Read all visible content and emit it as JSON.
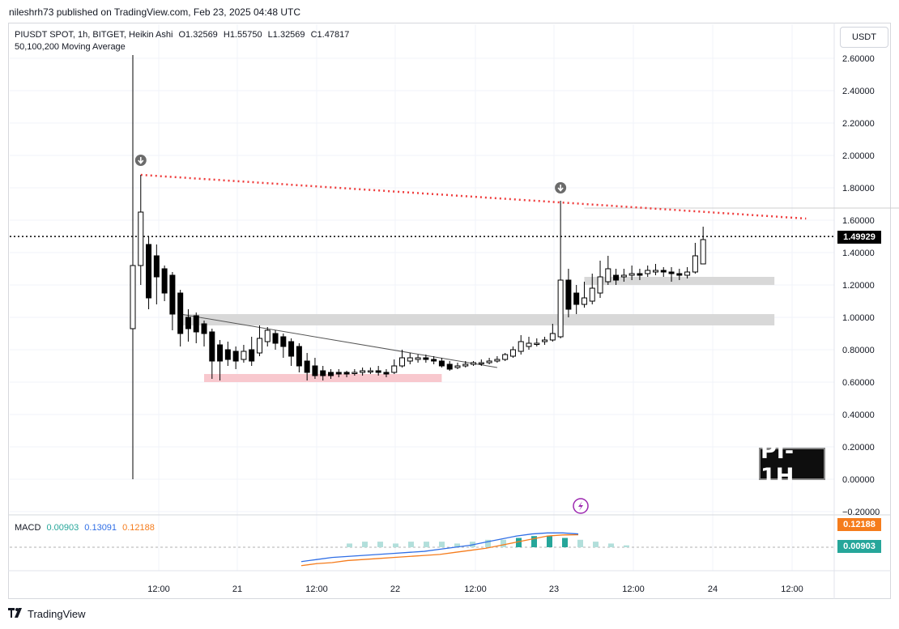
{
  "header": {
    "published": "nileshrh73 published on TradingView.com, Feb 23, 2025 04:48 UTC"
  },
  "legend": {
    "symbol": "PIUSDT SPOT, 1h, BITGET, Heikin Ashi",
    "open": "O1.32569",
    "high": "H1.55750",
    "low": "L1.32569",
    "close": "C1.47817",
    "ma": "50,100,200 Moving Average"
  },
  "currency_button": "USDT",
  "badge": "PI-1H",
  "macd_legend": {
    "label": "MACD",
    "hist": "0.00903",
    "macd": "0.13091",
    "signal": "0.12188"
  },
  "tags": {
    "last_price": "1.49929",
    "signal": "0.12188",
    "hist": "0.00903"
  },
  "footer": {
    "brand": "TradingView"
  },
  "colors": {
    "bull": "#ffffff",
    "bear": "#000000",
    "resistance": "#ef3b3b",
    "support_zone": "#d8d8d8",
    "demand_zone": "#f8c8ce",
    "macd_line": "#2f6ee6",
    "signal_line": "#f57c1c",
    "hist_up": "#26a69a",
    "hist_fade": "#b2dfdb",
    "alert": "#9c27b0"
  },
  "chart_data": {
    "type": "candlestick",
    "y_ticks": [
      "2.60000",
      "2.40000",
      "2.20000",
      "2.00000",
      "1.80000",
      "1.60000",
      "1.40000",
      "1.20000",
      "1.00000",
      "0.80000",
      "0.60000",
      "0.40000",
      "0.20000",
      "0.00000",
      "−0.20000"
    ],
    "x_ticks": [
      "12:00",
      "21",
      "12:00",
      "22",
      "12:00",
      "23",
      "12:00",
      "24",
      "12:00"
    ],
    "ylim": [
      -0.2,
      2.6
    ],
    "candles": [
      {
        "o": 0.93,
        "c": 1.32,
        "h": 2.62,
        "l": 0.0
      },
      {
        "o": 1.32,
        "c": 1.65,
        "h": 1.88,
        "l": 1.2
      },
      {
        "o": 1.45,
        "c": 1.12,
        "h": 1.5,
        "l": 1.05
      },
      {
        "o": 1.38,
        "c": 1.25,
        "h": 1.45,
        "l": 1.08
      },
      {
        "o": 1.3,
        "c": 1.15,
        "h": 1.32,
        "l": 1.1
      },
      {
        "o": 1.26,
        "c": 1.02,
        "h": 1.28,
        "l": 0.92
      },
      {
        "o": 1.15,
        "c": 0.9,
        "h": 1.17,
        "l": 0.82
      },
      {
        "o": 1.0,
        "c": 0.93,
        "h": 1.05,
        "l": 0.85
      },
      {
        "o": 1.01,
        "c": 0.91,
        "h": 1.03,
        "l": 0.84
      },
      {
        "o": 0.96,
        "c": 0.9,
        "h": 0.98,
        "l": 0.82
      },
      {
        "o": 0.91,
        "c": 0.73,
        "h": 0.93,
        "l": 0.62
      },
      {
        "o": 0.83,
        "c": 0.73,
        "h": 0.86,
        "l": 0.61
      },
      {
        "o": 0.8,
        "c": 0.74,
        "h": 0.85,
        "l": 0.7
      },
      {
        "o": 0.79,
        "c": 0.73,
        "h": 0.82,
        "l": 0.68
      },
      {
        "o": 0.74,
        "c": 0.79,
        "h": 0.83,
        "l": 0.72
      },
      {
        "o": 0.8,
        "c": 0.73,
        "h": 0.88,
        "l": 0.7
      },
      {
        "o": 0.78,
        "c": 0.87,
        "h": 0.95,
        "l": 0.76
      },
      {
        "o": 0.85,
        "c": 0.92,
        "h": 0.94,
        "l": 0.82
      },
      {
        "o": 0.9,
        "c": 0.84,
        "h": 0.92,
        "l": 0.8
      },
      {
        "o": 0.88,
        "c": 0.82,
        "h": 0.9,
        "l": 0.75
      },
      {
        "o": 0.85,
        "c": 0.76,
        "h": 0.87,
        "l": 0.7
      },
      {
        "o": 0.82,
        "c": 0.7,
        "h": 0.84,
        "l": 0.66
      },
      {
        "o": 0.73,
        "c": 0.66,
        "h": 0.78,
        "l": 0.61
      },
      {
        "o": 0.7,
        "c": 0.64,
        "h": 0.75,
        "l": 0.62
      },
      {
        "o": 0.67,
        "c": 0.64,
        "h": 0.7,
        "l": 0.61
      },
      {
        "o": 0.66,
        "c": 0.64,
        "h": 0.68,
        "l": 0.62
      },
      {
        "o": 0.66,
        "c": 0.65,
        "h": 0.68,
        "l": 0.63
      },
      {
        "o": 0.66,
        "c": 0.65,
        "h": 0.67,
        "l": 0.63
      },
      {
        "o": 0.66,
        "c": 0.66,
        "h": 0.68,
        "l": 0.64
      },
      {
        "o": 0.66,
        "c": 0.67,
        "h": 0.69,
        "l": 0.64
      },
      {
        "o": 0.67,
        "c": 0.67,
        "h": 0.69,
        "l": 0.65
      },
      {
        "o": 0.67,
        "c": 0.66,
        "h": 0.7,
        "l": 0.64
      },
      {
        "o": 0.66,
        "c": 0.65,
        "h": 0.68,
        "l": 0.63
      },
      {
        "o": 0.66,
        "c": 0.7,
        "h": 0.74,
        "l": 0.65
      },
      {
        "o": 0.7,
        "c": 0.75,
        "h": 0.8,
        "l": 0.69
      },
      {
        "o": 0.73,
        "c": 0.75,
        "h": 0.78,
        "l": 0.71
      },
      {
        "o": 0.74,
        "c": 0.75,
        "h": 0.77,
        "l": 0.72
      },
      {
        "o": 0.75,
        "c": 0.74,
        "h": 0.77,
        "l": 0.72
      },
      {
        "o": 0.74,
        "c": 0.73,
        "h": 0.76,
        "l": 0.71
      },
      {
        "o": 0.73,
        "c": 0.7,
        "h": 0.75,
        "l": 0.69
      },
      {
        "o": 0.71,
        "c": 0.68,
        "h": 0.73,
        "l": 0.67
      },
      {
        "o": 0.69,
        "c": 0.7,
        "h": 0.72,
        "l": 0.68
      },
      {
        "o": 0.7,
        "c": 0.71,
        "h": 0.73,
        "l": 0.69
      },
      {
        "o": 0.71,
        "c": 0.72,
        "h": 0.73,
        "l": 0.7
      },
      {
        "o": 0.72,
        "c": 0.72,
        "h": 0.74,
        "l": 0.7
      },
      {
        "o": 0.72,
        "c": 0.73,
        "h": 0.75,
        "l": 0.71
      },
      {
        "o": 0.73,
        "c": 0.74,
        "h": 0.76,
        "l": 0.72
      },
      {
        "o": 0.74,
        "c": 0.77,
        "h": 0.78,
        "l": 0.73
      },
      {
        "o": 0.76,
        "c": 0.8,
        "h": 0.82,
        "l": 0.75
      },
      {
        "o": 0.79,
        "c": 0.85,
        "h": 0.89,
        "l": 0.77
      },
      {
        "o": 0.82,
        "c": 0.84,
        "h": 0.88,
        "l": 0.8
      },
      {
        "o": 0.84,
        "c": 0.84,
        "h": 0.87,
        "l": 0.82
      },
      {
        "o": 0.85,
        "c": 0.86,
        "h": 0.88,
        "l": 0.83
      },
      {
        "o": 0.86,
        "c": 0.9,
        "h": 0.96,
        "l": 0.85
      },
      {
        "o": 0.88,
        "c": 1.23,
        "h": 1.72,
        "l": 0.87
      },
      {
        "o": 1.23,
        "c": 1.05,
        "h": 1.3,
        "l": 1.0
      },
      {
        "o": 1.15,
        "c": 1.08,
        "h": 1.2,
        "l": 1.02
      },
      {
        "o": 1.08,
        "c": 1.12,
        "h": 1.22,
        "l": 1.06
      },
      {
        "o": 1.1,
        "c": 1.18,
        "h": 1.27,
        "l": 1.08
      },
      {
        "o": 1.15,
        "c": 1.25,
        "h": 1.35,
        "l": 1.12
      },
      {
        "o": 1.22,
        "c": 1.3,
        "h": 1.38,
        "l": 1.2
      },
      {
        "o": 1.26,
        "c": 1.23,
        "h": 1.3,
        "l": 1.2
      },
      {
        "o": 1.25,
        "c": 1.26,
        "h": 1.3,
        "l": 1.22
      },
      {
        "o": 1.26,
        "c": 1.27,
        "h": 1.32,
        "l": 1.23
      },
      {
        "o": 1.27,
        "c": 1.26,
        "h": 1.3,
        "l": 1.23
      },
      {
        "o": 1.27,
        "c": 1.29,
        "h": 1.32,
        "l": 1.25
      },
      {
        "o": 1.28,
        "c": 1.29,
        "h": 1.33,
        "l": 1.26
      },
      {
        "o": 1.29,
        "c": 1.28,
        "h": 1.31,
        "l": 1.25
      },
      {
        "o": 1.28,
        "c": 1.27,
        "h": 1.31,
        "l": 1.22
      },
      {
        "o": 1.27,
        "c": 1.26,
        "h": 1.3,
        "l": 1.23
      },
      {
        "o": 1.26,
        "c": 1.28,
        "h": 1.31,
        "l": 1.24
      },
      {
        "o": 1.28,
        "c": 1.38,
        "h": 1.46,
        "l": 1.27
      },
      {
        "o": 1.33,
        "c": 1.48,
        "h": 1.56,
        "l": 1.33
      }
    ],
    "annotations": {
      "resistance_line": {
        "x0": 1,
        "y0": 1.88,
        "x1": 85,
        "y1": 1.61
      },
      "downtrend_line": {
        "x0": 6,
        "y0": 1.02,
        "x1": 46,
        "y1": 0.69
      },
      "zone_support_high": {
        "x0": 57,
        "x1": 81,
        "y0": 1.2,
        "y1": 1.25
      },
      "zone_support_mid": {
        "x0": 6,
        "x1": 81,
        "y0": 0.95,
        "y1": 1.02
      },
      "zone_demand": {
        "x0": 9,
        "x1": 39,
        "y0": 0.6,
        "y1": 0.65
      },
      "thin_line": {
        "x0": 57,
        "x1": 101,
        "y": 1.675
      },
      "last_price": 1.49929
    },
    "macd": {
      "macd_line": [
        -0.14,
        -0.12,
        -0.1,
        -0.09,
        -0.08,
        -0.07,
        -0.06,
        -0.05,
        -0.04,
        -0.02,
        0.0,
        0.02,
        0.05,
        0.08,
        0.11,
        0.13,
        0.14,
        0.14,
        0.13
      ],
      "signal_line": [
        -0.18,
        -0.16,
        -0.15,
        -0.13,
        -0.12,
        -0.11,
        -0.1,
        -0.09,
        -0.08,
        -0.07,
        -0.05,
        -0.03,
        -0.01,
        0.02,
        0.05,
        0.08,
        0.11,
        0.12,
        0.122
      ],
      "histogram": [
        0.02,
        0.03,
        0.03,
        0.02,
        0.03,
        0.03,
        0.03,
        0.02,
        0.03,
        0.04,
        0.04,
        0.05,
        0.06,
        0.06,
        0.05,
        0.04,
        0.03,
        0.02,
        0.01
      ]
    }
  }
}
